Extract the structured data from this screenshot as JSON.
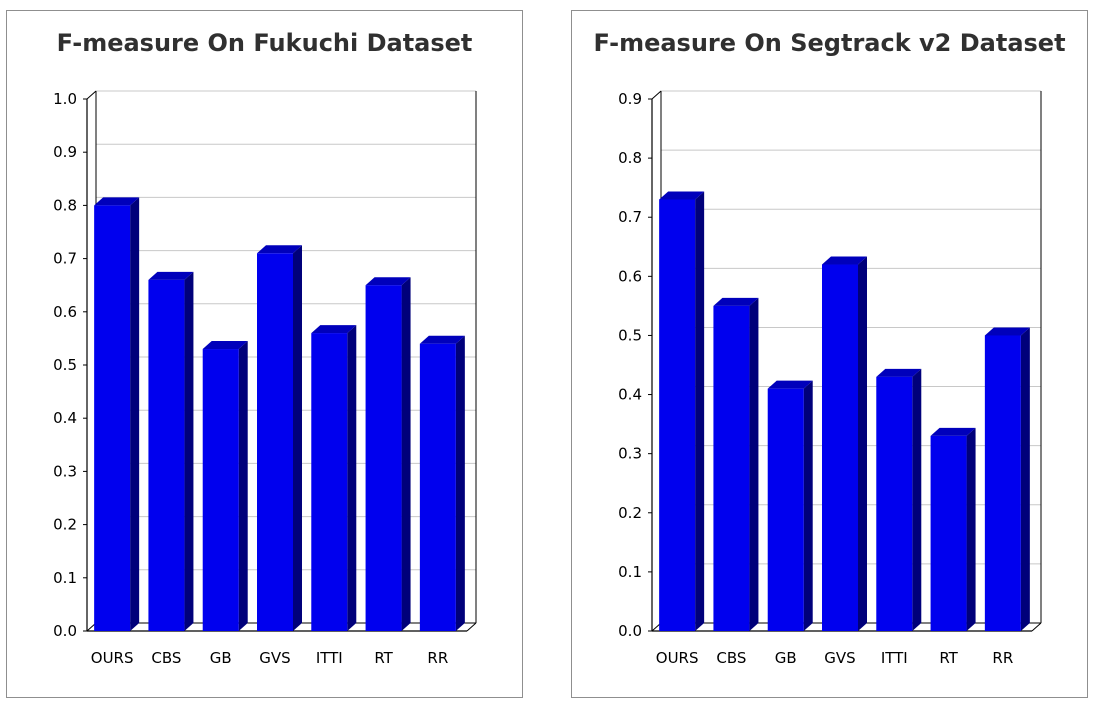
{
  "chart_data": [
    {
      "type": "bar",
      "title": "F-measure On Fukuchi Dataset",
      "categories": [
        "OURS",
        "CBS",
        "GB",
        "GVS",
        "ITTI",
        "RT",
        "RR"
      ],
      "values": [
        0.8,
        0.66,
        0.53,
        0.71,
        0.56,
        0.65,
        0.54
      ],
      "ylim": [
        0.0,
        1.0
      ],
      "yticks": [
        "0.0",
        "0.1",
        "0.2",
        "0.3",
        "0.4",
        "0.5",
        "0.6",
        "0.7",
        "0.8",
        "0.9",
        "1.0"
      ],
      "grid": true,
      "bar_color": "#0000ee",
      "bar_side_color": "#00007a",
      "bar_top_color": "#0000bb"
    },
    {
      "type": "bar",
      "title": "F-measure On Segtrack v2 Dataset",
      "categories": [
        "OURS",
        "CBS",
        "GB",
        "GVS",
        "ITTI",
        "RT",
        "RR"
      ],
      "values": [
        0.73,
        0.55,
        0.41,
        0.62,
        0.43,
        0.33,
        0.5
      ],
      "ylim": [
        0.0,
        0.9
      ],
      "yticks": [
        "0.0",
        "0.1",
        "0.2",
        "0.3",
        "0.4",
        "0.5",
        "0.6",
        "0.7",
        "0.8",
        "0.9"
      ],
      "grid": true,
      "bar_color": "#0000ee",
      "bar_side_color": "#00007a",
      "bar_top_color": "#0000bb"
    }
  ]
}
